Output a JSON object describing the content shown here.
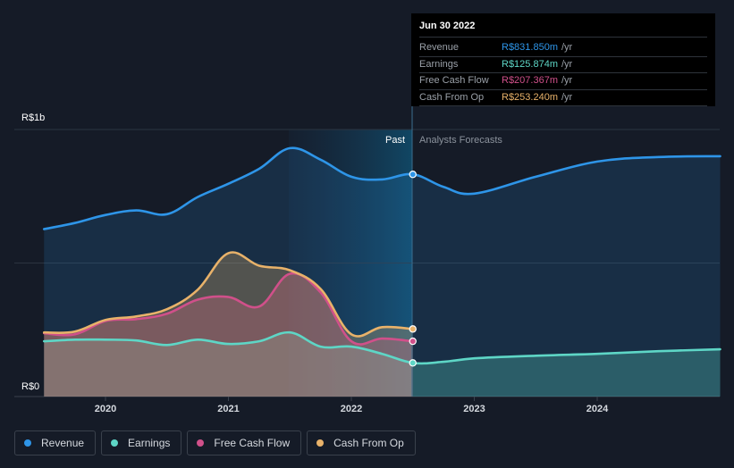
{
  "chart_data": {
    "type": "area",
    "title": "",
    "y_axis": {
      "top_label": "R$1b",
      "bottom_label": "R$0",
      "ylim": [
        0,
        1000
      ]
    },
    "x_ticks": [
      "2020",
      "2021",
      "2022",
      "2023",
      "2024"
    ],
    "divider": {
      "past_label": "Past",
      "forecast_label": "Analysts Forecasts",
      "at_year": 2022.5
    },
    "series": [
      {
        "name": "Revenue",
        "color": "#2e95e8",
        "points": [
          [
            2019.5,
            627
          ],
          [
            2019.75,
            650
          ],
          [
            2020.0,
            680
          ],
          [
            2020.25,
            697
          ],
          [
            2020.5,
            683
          ],
          [
            2020.75,
            747
          ],
          [
            2021.0,
            797
          ],
          [
            2021.25,
            853
          ],
          [
            2021.5,
            930
          ],
          [
            2021.75,
            887
          ],
          [
            2022.0,
            823
          ],
          [
            2022.25,
            813
          ],
          [
            2022.5,
            832
          ],
          [
            2022.75,
            785
          ],
          [
            2023.0,
            760
          ],
          [
            2023.5,
            823
          ],
          [
            2024.0,
            880
          ],
          [
            2024.5,
            897
          ],
          [
            2025.0,
            900
          ]
        ]
      },
      {
        "name": "Earnings",
        "color": "#5ed6c6",
        "points": [
          [
            2019.5,
            207
          ],
          [
            2019.75,
            213
          ],
          [
            2020.0,
            213
          ],
          [
            2020.25,
            210
          ],
          [
            2020.5,
            193
          ],
          [
            2020.75,
            213
          ],
          [
            2021.0,
            197
          ],
          [
            2021.25,
            207
          ],
          [
            2021.5,
            240
          ],
          [
            2021.75,
            187
          ],
          [
            2022.0,
            187
          ],
          [
            2022.25,
            160
          ],
          [
            2022.5,
            126
          ],
          [
            2022.75,
            130
          ],
          [
            2023.0,
            143
          ],
          [
            2023.5,
            153
          ],
          [
            2024.0,
            160
          ],
          [
            2024.5,
            170
          ],
          [
            2025.0,
            177
          ]
        ]
      },
      {
        "name": "Free Cash Flow",
        "color": "#d0508a",
        "points": [
          [
            2019.5,
            237
          ],
          [
            2019.75,
            233
          ],
          [
            2020.0,
            283
          ],
          [
            2020.25,
            290
          ],
          [
            2020.5,
            310
          ],
          [
            2020.75,
            363
          ],
          [
            2021.0,
            373
          ],
          [
            2021.25,
            337
          ],
          [
            2021.5,
            460
          ],
          [
            2021.75,
            390
          ],
          [
            2022.0,
            207
          ],
          [
            2022.25,
            217
          ],
          [
            2022.5,
            207
          ]
        ]
      },
      {
        "name": "Cash From Op",
        "color": "#e8b26a",
        "points": [
          [
            2019.5,
            240
          ],
          [
            2019.75,
            243
          ],
          [
            2020.0,
            287
          ],
          [
            2020.25,
            300
          ],
          [
            2020.5,
            327
          ],
          [
            2020.75,
            400
          ],
          [
            2021.0,
            537
          ],
          [
            2021.25,
            490
          ],
          [
            2021.5,
            473
          ],
          [
            2021.75,
            403
          ],
          [
            2022.0,
            233
          ],
          [
            2022.25,
            260
          ],
          [
            2022.5,
            253
          ]
        ]
      }
    ]
  },
  "tooltip": {
    "date": "Jun 30 2022",
    "rows": [
      {
        "label": "Revenue",
        "value": "R$831.850m",
        "unit": "/yr",
        "color": "#2e95e8"
      },
      {
        "label": "Earnings",
        "value": "R$125.874m",
        "unit": "/yr",
        "color": "#5ed6c6"
      },
      {
        "label": "Free Cash Flow",
        "value": "R$207.367m",
        "unit": "/yr",
        "color": "#d0508a"
      },
      {
        "label": "Cash From Op",
        "value": "R$253.240m",
        "unit": "/yr",
        "color": "#e8b26a"
      }
    ]
  },
  "legend": [
    {
      "label": "Revenue",
      "color": "#2e95e8"
    },
    {
      "label": "Earnings",
      "color": "#5ed6c6"
    },
    {
      "label": "Free Cash Flow",
      "color": "#d0508a"
    },
    {
      "label": "Cash From Op",
      "color": "#e8b26a"
    }
  ]
}
